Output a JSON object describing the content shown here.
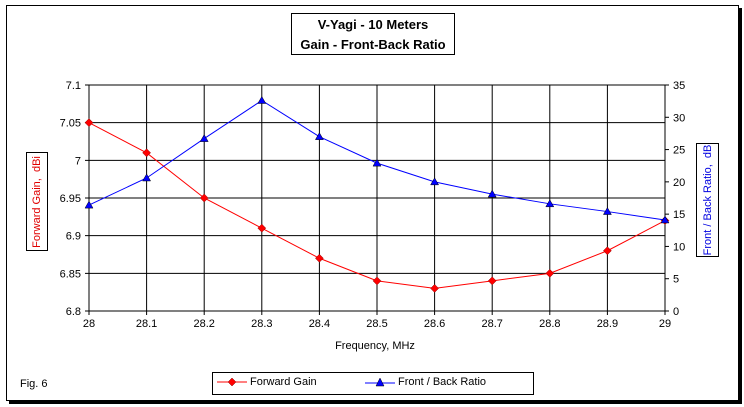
{
  "chart_data": {
    "type": "line",
    "title": "V-Yagi - 10 Meters",
    "subtitle": "Gain - Front-Back Ratio",
    "xlabel": "Frequency, MHz",
    "ylabel": "Forward Gain,  dBi",
    "y2label": "Front / Back Ratio,  dB",
    "x": [
      28,
      28.1,
      28.2,
      28.3,
      28.4,
      28.5,
      28.6,
      28.7,
      28.8,
      28.9,
      29
    ],
    "x_ticks": [
      "28",
      "28.1",
      "28.2",
      "28.3",
      "28.4",
      "28.5",
      "28.6",
      "28.7",
      "28.8",
      "28.9",
      "29"
    ],
    "xlim": [
      28,
      29
    ],
    "ylim": [
      6.8,
      7.1
    ],
    "y_ticks": [
      "6.8",
      "6.85",
      "6.9",
      "6.95",
      "7",
      "7.05",
      "7.1"
    ],
    "y2lim": [
      0,
      35
    ],
    "y2_ticks": [
      "0",
      "5",
      "10",
      "15",
      "20",
      "25",
      "30",
      "35"
    ],
    "grid": true,
    "legend_position": "bottom",
    "series": [
      {
        "name": "Forward Gain",
        "axis": "left",
        "color": "#ff0000",
        "marker": "diamond",
        "values": [
          7.05,
          7.01,
          6.95,
          6.91,
          6.87,
          6.84,
          6.83,
          6.84,
          6.85,
          6.88,
          6.92
        ]
      },
      {
        "name": "Front / Back Ratio",
        "axis": "right",
        "color": "#0000ff",
        "marker": "triangle",
        "values": [
          16.4,
          20.6,
          26.7,
          32.6,
          27.0,
          22.9,
          20.0,
          18.1,
          16.6,
          15.4,
          14.1
        ]
      }
    ]
  },
  "footer": {
    "fig_label": "Fig. 6"
  }
}
